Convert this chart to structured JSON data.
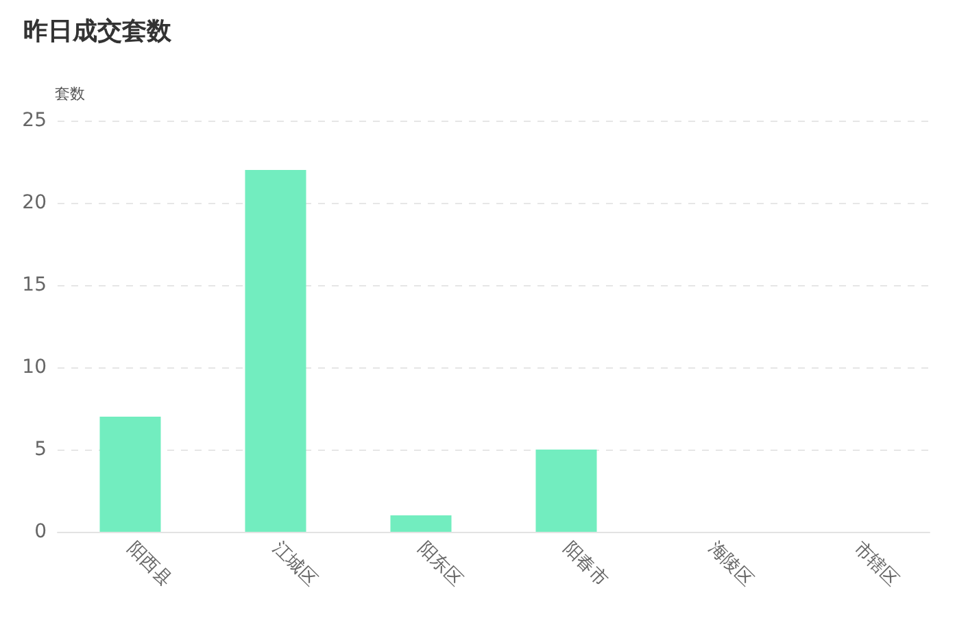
{
  "chart_data": {
    "type": "bar",
    "title": "昨日成交套数",
    "ylabel": "套数",
    "categories": [
      "阳西县",
      "江城区",
      "阳东区",
      "阳春市",
      "海陵区",
      "市辖区"
    ],
    "values": [
      7,
      22,
      1,
      5,
      0,
      0
    ],
    "color": "#72edbf",
    "ylim": [
      0,
      25
    ],
    "yticks": [
      0,
      5,
      10,
      15,
      20,
      25
    ],
    "grid": "y"
  }
}
